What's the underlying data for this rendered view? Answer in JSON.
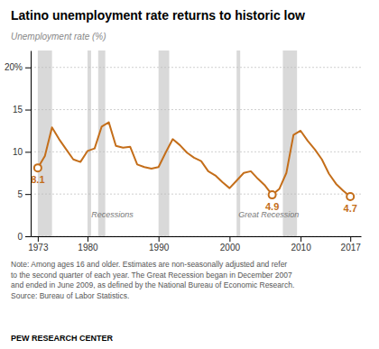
{
  "chart_data": {
    "type": "line",
    "title": "Latino unemployment rate returns to historic low",
    "y_label": "Unemployment rate (%)",
    "x": [
      1973,
      1974,
      1975,
      1976,
      1977,
      1978,
      1979,
      1980,
      1981,
      1982,
      1983,
      1984,
      1985,
      1986,
      1987,
      1988,
      1989,
      1990,
      1991,
      1992,
      1993,
      1994,
      1995,
      1996,
      1997,
      1998,
      1999,
      2000,
      2001,
      2002,
      2003,
      2004,
      2005,
      2006,
      2007,
      2008,
      2009,
      2010,
      2011,
      2012,
      2013,
      2014,
      2015,
      2016,
      2017
    ],
    "values": [
      8.1,
      9.5,
      12.9,
      11.5,
      10.3,
      9.1,
      8.8,
      10.1,
      10.4,
      13.0,
      13.5,
      10.7,
      10.5,
      10.6,
      8.5,
      8.2,
      8.0,
      8.2,
      9.9,
      11.5,
      10.8,
      9.9,
      9.3,
      8.9,
      7.7,
      7.2,
      6.4,
      5.7,
      6.6,
      7.5,
      7.7,
      6.8,
      6.0,
      4.9,
      5.6,
      7.5,
      12.0,
      12.5,
      11.3,
      10.3,
      9.1,
      7.4,
      6.2,
      5.4,
      4.7
    ],
    "color": "#c46e1a",
    "recession_bands": {
      "color": "#d9d9d9",
      "ranges": [
        [
          1973.0,
          1975.0
        ],
        [
          1980.0,
          1980.5
        ],
        [
          1981.5,
          1982.5
        ],
        [
          1990.0,
          1991.5
        ],
        [
          2001.0,
          2001.5
        ],
        [
          2007.5,
          2009.5
        ]
      ]
    },
    "annotations": [
      {
        "x": 1973,
        "y": 8.1,
        "label": "8.1"
      },
      {
        "x": 2006,
        "y": 4.9,
        "label": "4.9"
      },
      {
        "x": 2017,
        "y": 4.7,
        "label": "4.7"
      }
    ],
    "band_labels": [
      {
        "x": 1983.5,
        "y": 2.5,
        "label": "Recessions"
      },
      {
        "x": 2005.5,
        "y": 2.5,
        "label": "Great Recession"
      }
    ],
    "xlim": [
      1972.0,
      2018.5
    ],
    "ylim": [
      0,
      22
    ],
    "xticks": [
      1973,
      1980,
      1990,
      2000,
      2010,
      2017
    ],
    "yticks": [
      0,
      5,
      10,
      15,
      {
        "value": 20,
        "label": "20%"
      }
    ],
    "grid": true,
    "note": "Note: Among ages 16 and older. Estimates are non-seasonally adjusted and refer\nto the second quarter of each year. The Great Recession began in December 2007\nand ended in June 2009, as defined by the National Bureau of Economic Research.\nSource: Bureau of Labor Statistics.",
    "source": "PEW RESEARCH CENTER"
  }
}
